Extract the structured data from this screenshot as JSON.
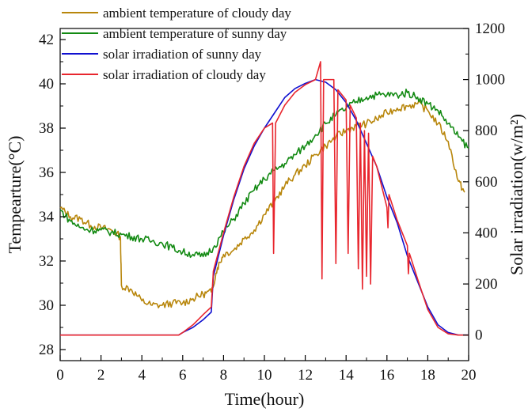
{
  "chart_data": {
    "type": "line",
    "xlabel": "Time(hour)",
    "ylabel_left": "Tempearture(°C)",
    "ylabel_right": "Solar irradiation(w/m²)",
    "xlim": [
      0,
      20
    ],
    "ylim_left": [
      27.5,
      42.5
    ],
    "ylim_right": [
      -100,
      1200
    ],
    "x_ticks": [
      "0",
      "2",
      "4",
      "6",
      "8",
      "10",
      "12",
      "14",
      "16",
      "18",
      "20"
    ],
    "y_left_ticks": [
      "28",
      "30",
      "32",
      "34",
      "36",
      "38",
      "40",
      "42"
    ],
    "y_right_ticks": [
      "0",
      "200",
      "400",
      "600",
      "800",
      "1000",
      "1200"
    ],
    "grid": false,
    "legend_position": "top-left",
    "series": [
      {
        "name": "ambient temperature of cloudy day",
        "axis": "left",
        "color": "#b8860b",
        "x": [
          0,
          0.5,
          1,
          1.5,
          2,
          2.5,
          2.95,
          3.0,
          3.5,
          4,
          4.5,
          5,
          5.5,
          6,
          6.5,
          7,
          7.4,
          7.7,
          8,
          8.5,
          9,
          9.5,
          10,
          10.5,
          11,
          11.5,
          12,
          12.5,
          13,
          13.5,
          14,
          14.5,
          15,
          15.5,
          16,
          16.5,
          17,
          17.5,
          18,
          18.5,
          19,
          19.5,
          19.8
        ],
        "y": [
          34.4,
          34.0,
          33.9,
          33.6,
          33.5,
          33.4,
          33.1,
          30.9,
          30.7,
          30.2,
          30.0,
          30.0,
          30.1,
          30.1,
          30.3,
          30.5,
          30.6,
          31.7,
          32.3,
          32.5,
          33.0,
          33.4,
          34.1,
          34.7,
          35.4,
          35.9,
          36.3,
          36.8,
          37.2,
          37.6,
          37.9,
          38.1,
          38.2,
          38.4,
          38.7,
          38.9,
          39.0,
          39.1,
          38.8,
          38.2,
          37.4,
          35.6,
          35.1
        ]
      },
      {
        "name": "ambient temperature of sunny day",
        "axis": "left",
        "color": "#138a13",
        "x": [
          0,
          0.5,
          1,
          1.5,
          2,
          2.5,
          3,
          3.5,
          4,
          4.5,
          5,
          5.5,
          6,
          6.5,
          7,
          7.5,
          8,
          8.5,
          9,
          9.5,
          10,
          10.5,
          11,
          11.5,
          12,
          12.5,
          13,
          13.5,
          14,
          14.5,
          15,
          15.5,
          16,
          16.5,
          17,
          17.5,
          18,
          18.5,
          19,
          19.5,
          20
        ],
        "y": [
          34.3,
          33.8,
          33.5,
          33.4,
          33.4,
          33.3,
          33.2,
          33.1,
          33.0,
          32.9,
          32.8,
          32.6,
          32.4,
          32.3,
          32.2,
          32.6,
          33.3,
          33.9,
          34.6,
          35.2,
          35.7,
          36.1,
          36.4,
          36.8,
          37.2,
          37.7,
          38.2,
          38.6,
          38.9,
          39.2,
          39.4,
          39.5,
          39.5,
          39.5,
          39.6,
          39.4,
          39.1,
          38.8,
          38.2,
          37.6,
          37.1
        ]
      },
      {
        "name": "solar irradiation of sunny day",
        "axis": "right",
        "color": "#1010d0",
        "x": [
          0,
          1,
          2,
          3,
          4,
          5,
          5.8,
          6,
          6.5,
          7,
          7.4,
          7.5,
          8,
          8.5,
          9,
          9.5,
          10,
          10.5,
          11,
          11.5,
          12,
          12.5,
          13,
          13.5,
          14,
          14.5,
          15,
          15.5,
          16,
          16.5,
          17,
          17.5,
          18,
          18.5,
          19,
          19.5,
          20
        ],
        "y": [
          0,
          0,
          0,
          0,
          0,
          0,
          0,
          10,
          30,
          60,
          90,
          230,
          390,
          530,
          650,
          740,
          810,
          870,
          930,
          965,
          985,
          1000,
          990,
          960,
          910,
          840,
          750,
          660,
          540,
          440,
          310,
          210,
          110,
          40,
          10,
          0,
          0
        ]
      },
      {
        "name": "solar irradiation of cloudy day",
        "axis": "right",
        "color": "#e8262e",
        "x": [
          0,
          1,
          2,
          3,
          4,
          5,
          5.8,
          6,
          6.5,
          7,
          7.4,
          7.5,
          8,
          8.5,
          9,
          9.5,
          10,
          10.4,
          10.45,
          10.55,
          11,
          11.5,
          12,
          12.5,
          12.75,
          12.82,
          12.9,
          13.4,
          13.5,
          13.6,
          14,
          14.1,
          14.2,
          14.5,
          14.6,
          14.7,
          14.8,
          14.9,
          15.0,
          15.1,
          15.2,
          15.3,
          15.4,
          15.5,
          16.0,
          16.05,
          16.1,
          16.5,
          17.0,
          17.05,
          17.1,
          17.5,
          18,
          18.5,
          19,
          19.5,
          20
        ],
        "y": [
          0,
          0,
          0,
          0,
          0,
          0,
          0,
          10,
          40,
          80,
          110,
          250,
          400,
          540,
          660,
          750,
          810,
          830,
          320,
          830,
          900,
          950,
          980,
          1000,
          1070,
          220,
          1000,
          1000,
          280,
          960,
          920,
          320,
          900,
          850,
          260,
          830,
          180,
          800,
          230,
          790,
          200,
          700,
          680,
          660,
          500,
          420,
          550,
          450,
          350,
          240,
          320,
          220,
          100,
          30,
          5,
          0,
          0
        ]
      }
    ]
  }
}
